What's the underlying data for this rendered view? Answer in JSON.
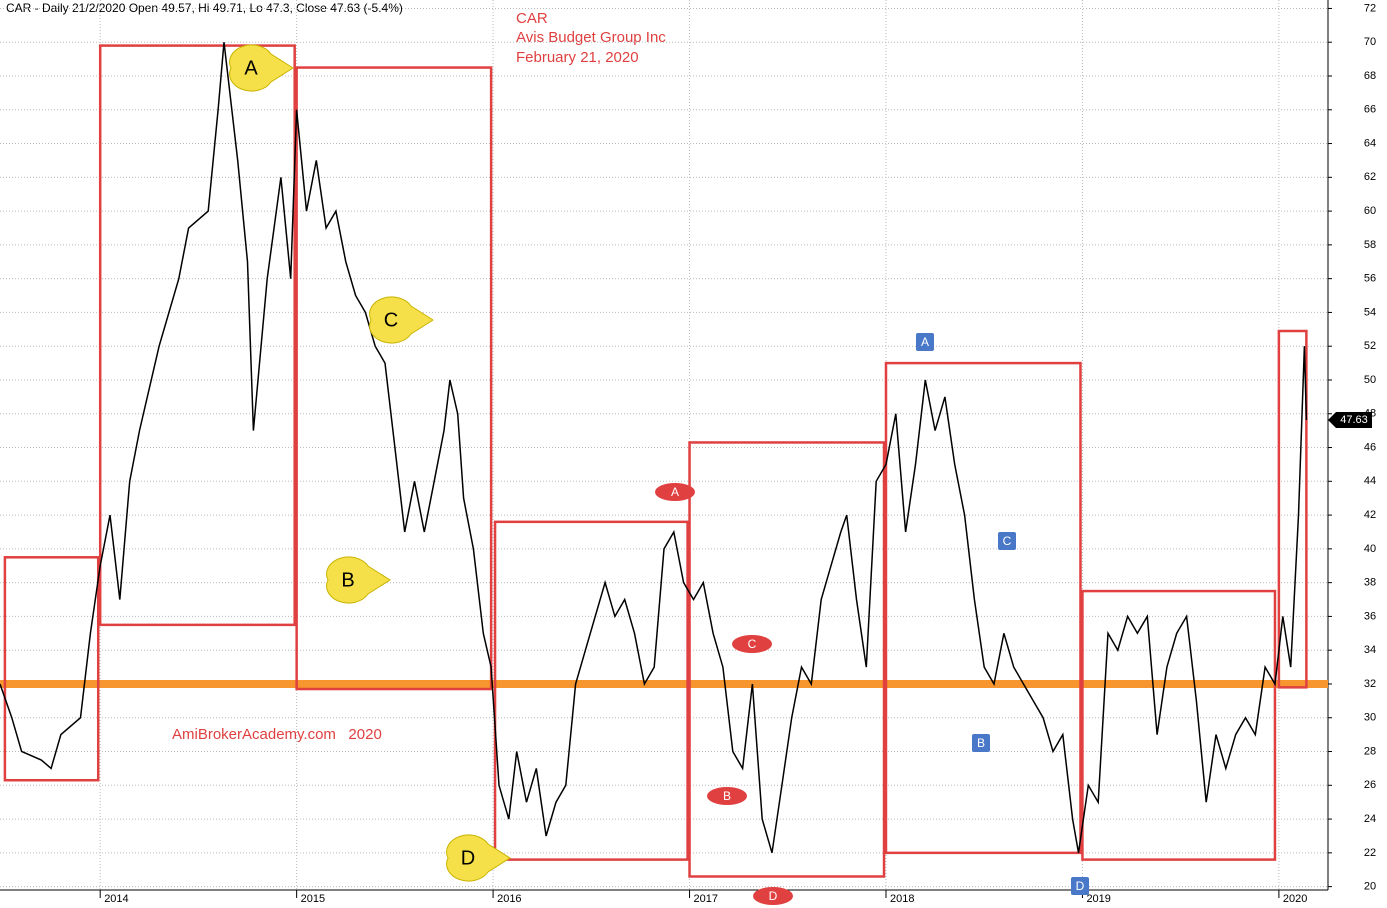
{
  "chart_data": {
    "type": "line",
    "header": "CAR - Daily 21/2/2020 Open 49.57, Hi 49.71, Lo 47.3, Close 47.63 (-5.4%)",
    "title": "CAR",
    "subtitle": "Avis Budget Group Inc",
    "date": "February 21, 2020",
    "watermark": "AmiBrokerAcademy.com   2020",
    "last_price": 47.63,
    "xlim": [
      2013.49,
      2020.25
    ],
    "xticks": [
      2014,
      2015,
      2016,
      2017,
      2018,
      2019,
      2020
    ],
    "ylim": [
      19.8,
      72.5
    ],
    "yticks": [
      20,
      22,
      24,
      26,
      28,
      30,
      32,
      34,
      36,
      38,
      40,
      42,
      44,
      46,
      48,
      50,
      52,
      54,
      56,
      58,
      60,
      62,
      64,
      66,
      68,
      70,
      72
    ],
    "grid": true,
    "series": [
      {
        "name": "CAR",
        "color": "#000000",
        "x": [
          2013.49,
          2013.55,
          2013.6,
          2013.7,
          2013.75,
          2013.8,
          2013.9,
          2013.95,
          2014.0,
          2014.05,
          2014.1,
          2014.15,
          2014.2,
          2014.3,
          2014.4,
          2014.45,
          2014.55,
          2014.6,
          2014.63,
          2014.7,
          2014.75,
          2014.78,
          2014.85,
          2014.92,
          2014.97,
          2015.0,
          2015.05,
          2015.1,
          2015.15,
          2015.2,
          2015.25,
          2015.3,
          2015.35,
          2015.4,
          2015.45,
          2015.5,
          2015.55,
          2015.6,
          2015.65,
          2015.7,
          2015.75,
          2015.78,
          2015.82,
          2015.85,
          2015.9,
          2015.95,
          2015.99,
          2016.03,
          2016.08,
          2016.12,
          2016.17,
          2016.22,
          2016.27,
          2016.32,
          2016.37,
          2016.42,
          2016.47,
          2016.52,
          2016.57,
          2016.62,
          2016.67,
          2016.72,
          2016.77,
          2016.82,
          2016.87,
          2016.92,
          2016.97,
          2017.02,
          2017.07,
          2017.12,
          2017.17,
          2017.22,
          2017.27,
          2017.32,
          2017.37,
          2017.42,
          2017.47,
          2017.52,
          2017.57,
          2017.62,
          2017.67,
          2017.72,
          2017.77,
          2017.8,
          2017.85,
          2017.9,
          2017.95,
          2018.0,
          2018.05,
          2018.1,
          2018.15,
          2018.2,
          2018.25,
          2018.3,
          2018.35,
          2018.4,
          2018.45,
          2018.5,
          2018.55,
          2018.6,
          2018.65,
          2018.7,
          2018.75,
          2018.8,
          2018.85,
          2018.9,
          2018.95,
          2018.98,
          2019.03,
          2019.08,
          2019.13,
          2019.18,
          2019.23,
          2019.28,
          2019.33,
          2019.38,
          2019.43,
          2019.48,
          2019.53,
          2019.58,
          2019.63,
          2019.68,
          2019.73,
          2019.78,
          2019.83,
          2019.88,
          2019.93,
          2019.98,
          2020.02,
          2020.06,
          2020.1,
          2020.13,
          2020.14
        ],
        "values": [
          32,
          30,
          28,
          27.5,
          27,
          29,
          30,
          35,
          39,
          42,
          37,
          44,
          47,
          52,
          56,
          59,
          60,
          66,
          70,
          63,
          57,
          47,
          56,
          62,
          56,
          66,
          60,
          63,
          59,
          60,
          57,
          55,
          54,
          52,
          51,
          46,
          41,
          44,
          41,
          44,
          47,
          50,
          48,
          43,
          40,
          35,
          33,
          26,
          24,
          28,
          25,
          27,
          23,
          25,
          26,
          32,
          34,
          36,
          38,
          36,
          37,
          35,
          32,
          33,
          40,
          41,
          38,
          37,
          38,
          35,
          33,
          28,
          27,
          32,
          24,
          22,
          26,
          30,
          33,
          32,
          37,
          39,
          41,
          42,
          37,
          33,
          44,
          45,
          48,
          41,
          45,
          50,
          47,
          49,
          45,
          42,
          37,
          33,
          32,
          35,
          33,
          32,
          31,
          30,
          28,
          29,
          24,
          22,
          26,
          25,
          35,
          34,
          36,
          35,
          36,
          29,
          33,
          35,
          36,
          31,
          25,
          29,
          27,
          29,
          30,
          29,
          33,
          32,
          36,
          33,
          42,
          52,
          47.63
        ]
      }
    ],
    "support_line": 32,
    "boxes": [
      {
        "start": 2013.515,
        "end": 2013.99,
        "low": 26.3,
        "high": 39.5
      },
      {
        "start": 2014.0,
        "end": 2014.99,
        "low": 35.5,
        "high": 69.8
      },
      {
        "start": 2015.0,
        "end": 2015.99,
        "low": 31.7,
        "high": 68.5
      },
      {
        "start": 2016.01,
        "end": 2016.99,
        "low": 21.6,
        "high": 41.6
      },
      {
        "start": 2017.0,
        "end": 2017.99,
        "low": 20.6,
        "high": 46.3
      },
      {
        "start": 2018.0,
        "end": 2018.99,
        "low": 22,
        "high": 51
      },
      {
        "start": 2019.0,
        "end": 2019.98,
        "low": 21.6,
        "high": 37.5
      },
      {
        "start": 2020.0,
        "end": 2020.14,
        "low": 31.8,
        "high": 52.9
      }
    ],
    "labels": [
      "A",
      "C",
      "B",
      "D",
      "A",
      "C",
      "B",
      "D",
      "A",
      "C",
      "B",
      "D"
    ]
  }
}
